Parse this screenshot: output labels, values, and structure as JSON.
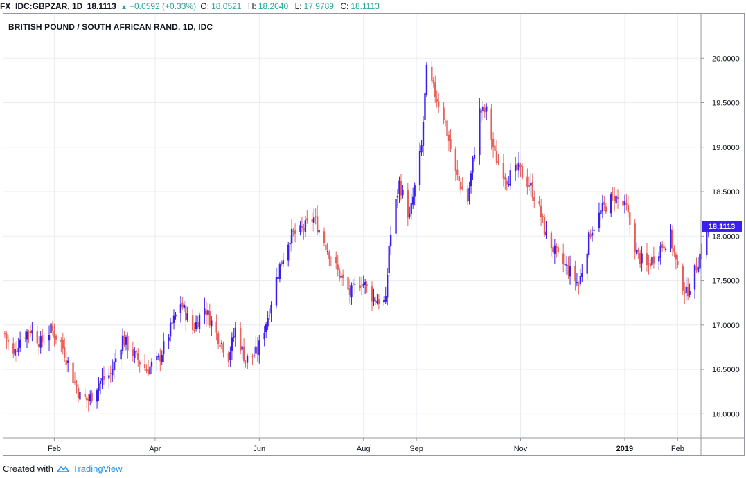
{
  "header": {
    "symbol": "FX_IDC:GBPZAR, 1D",
    "last": "18.1113",
    "change": "+0.0592 (+0.33%)",
    "open_label": "O:",
    "open": "18.0521",
    "high_label": "H:",
    "high": "18.2040",
    "low_label": "L:",
    "low": "17.9789",
    "close_label": "C:",
    "close": "18.1113"
  },
  "footer": {
    "created_with": "Created with",
    "brand": "TradingView",
    "logo_icon": "tradingview-cloud-icon"
  },
  "colors": {
    "up": "#3b1ff0",
    "down": "#e8605a",
    "grid": "#e9edf3",
    "axis": "#9598a1",
    "price_tag": "#3b1ff0"
  },
  "chart_data": {
    "type": "candlestick",
    "title": "BRITISH POUND / SOUTH AFRICAN RAND, 1D, IDC",
    "y_ticks": [
      "16.0000",
      "16.5000",
      "17.0000",
      "17.5000",
      "18.0000",
      "18.5000",
      "19.0000",
      "19.5000",
      "20.0000"
    ],
    "ylim": [
      15.73,
      20.5
    ],
    "x_ticks": [
      {
        "label": "Feb",
        "date": "2018-02-01"
      },
      {
        "label": "Apr",
        "date": "2018-04-01"
      },
      {
        "label": "Jun",
        "date": "2018-06-01"
      },
      {
        "label": "Aug",
        "date": "2018-08-01"
      },
      {
        "label": "Sep",
        "date": "2018-09-01"
      },
      {
        "label": "Nov",
        "date": "2018-11-01"
      },
      {
        "label": "2019",
        "date": "2019-01-01",
        "bold": true
      },
      {
        "label": "Feb",
        "date": "2019-02-01"
      }
    ],
    "last_price": "18.1113",
    "anchors": [
      [
        "2018-01-03",
        16.9
      ],
      [
        "2018-01-08",
        16.65
      ],
      [
        "2018-01-12",
        16.85
      ],
      [
        "2018-01-18",
        16.95
      ],
      [
        "2018-01-24",
        16.8
      ],
      [
        "2018-01-30",
        16.95
      ],
      [
        "2018-02-05",
        16.8
      ],
      [
        "2018-02-12",
        16.4
      ],
      [
        "2018-02-16",
        16.2
      ],
      [
        "2018-02-21",
        16.15
      ],
      [
        "2018-02-27",
        16.35
      ],
      [
        "2018-03-06",
        16.45
      ],
      [
        "2018-03-13",
        16.85
      ],
      [
        "2018-03-20",
        16.65
      ],
      [
        "2018-03-27",
        16.5
      ],
      [
        "2018-04-03",
        16.6
      ],
      [
        "2018-04-10",
        16.95
      ],
      [
        "2018-04-16",
        17.25
      ],
      [
        "2018-04-23",
        16.95
      ],
      [
        "2018-04-30",
        17.2
      ],
      [
        "2018-05-07",
        16.9
      ],
      [
        "2018-05-14",
        16.65
      ],
      [
        "2018-05-18",
        16.95
      ],
      [
        "2018-05-24",
        16.6
      ],
      [
        "2018-05-31",
        16.7
      ],
      [
        "2018-06-06",
        17.1
      ],
      [
        "2018-06-12",
        17.6
      ],
      [
        "2018-06-19",
        18.0
      ],
      [
        "2018-06-25",
        18.05
      ],
      [
        "2018-07-03",
        18.2
      ],
      [
        "2018-07-10",
        17.9
      ],
      [
        "2018-07-17",
        17.6
      ],
      [
        "2018-07-24",
        17.35
      ],
      [
        "2018-07-31",
        17.5
      ],
      [
        "2018-08-07",
        17.3
      ],
      [
        "2018-08-14",
        17.25
      ],
      [
        "2018-08-16",
        17.9
      ],
      [
        "2018-08-22",
        18.6
      ],
      [
        "2018-08-28",
        18.2
      ],
      [
        "2018-09-04",
        19.0
      ],
      [
        "2018-09-07",
        19.85
      ],
      [
        "2018-09-12",
        19.6
      ],
      [
        "2018-09-17",
        19.35
      ],
      [
        "2018-09-24",
        18.7
      ],
      [
        "2018-10-01",
        18.4
      ],
      [
        "2018-10-08",
        19.4
      ],
      [
        "2018-10-12",
        19.4
      ],
      [
        "2018-10-17",
        18.9
      ],
      [
        "2018-10-24",
        18.65
      ],
      [
        "2018-10-31",
        18.75
      ],
      [
        "2018-11-07",
        18.55
      ],
      [
        "2018-11-12",
        18.3
      ],
      [
        "2018-11-16",
        18.0
      ],
      [
        "2018-11-23",
        17.75
      ],
      [
        "2018-11-30",
        17.6
      ],
      [
        "2018-12-05",
        17.45
      ],
      [
        "2018-12-12",
        18.05
      ],
      [
        "2018-12-19",
        18.3
      ],
      [
        "2018-12-26",
        18.45
      ],
      [
        "2019-01-02",
        18.3
      ],
      [
        "2019-01-08",
        17.8
      ],
      [
        "2019-01-14",
        17.65
      ],
      [
        "2019-01-21",
        17.85
      ],
      [
        "2019-01-28",
        18.0
      ],
      [
        "2019-02-01",
        17.6
      ],
      [
        "2019-02-06",
        17.35
      ],
      [
        "2019-02-11",
        17.6
      ],
      [
        "2019-02-15",
        17.85
      ],
      [
        "2019-02-19",
        18.11
      ]
    ]
  }
}
